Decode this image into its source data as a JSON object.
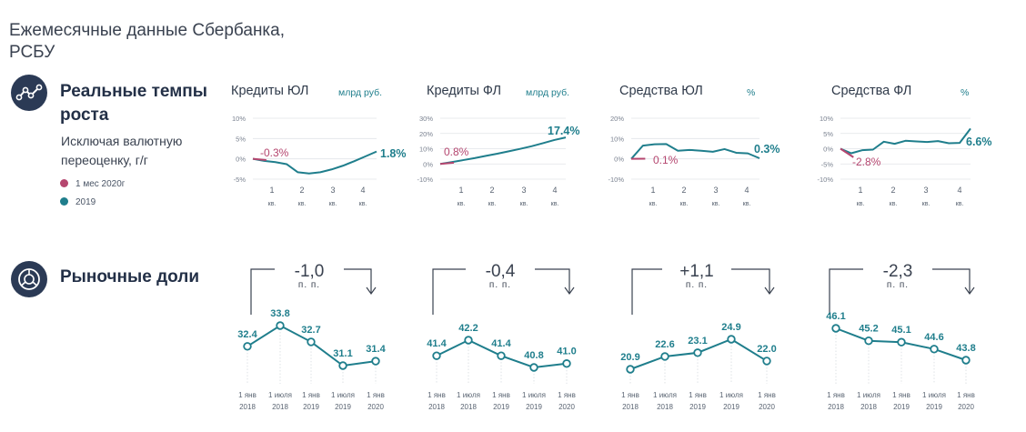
{
  "page": {
    "title_line1": "Ежемесячные данные Сбербанка,",
    "title_line2": "РСБУ"
  },
  "section1": {
    "title_line1": "Реальные темпы",
    "title_line2": "роста",
    "subtitle_line1": "Исключая валютную",
    "subtitle_line2": "переоценку, г/г",
    "icon": "line-chart-icon",
    "legend": [
      {
        "label": "1 мес 2020г",
        "color": "#b5466f"
      },
      {
        "label": "2019",
        "color": "#1f7e8c"
      }
    ]
  },
  "section2": {
    "title": "Рыночные доли",
    "icon": "pie-chart-icon"
  },
  "colors": {
    "teal": "#1f7e8c",
    "crimson": "#b5466f",
    "navy": "#2b3a55",
    "dark": "#3a4250"
  },
  "chart_data": [
    {
      "type": "line",
      "name": "Кредиты ЮЛ",
      "unit": "млрд руб.",
      "yticks": [
        "10%",
        "5%",
        "0%",
        "-5%"
      ],
      "ylim": [
        -5,
        10
      ],
      "quarters": [
        "1",
        "2",
        "3",
        "4"
      ],
      "quarter_suffix": "кв.",
      "series_2019": [
        0,
        -0.5,
        -0.8,
        -1.3,
        -3.3,
        -3.6,
        -3.3,
        -2.6,
        -1.7,
        -0.6,
        0.6,
        1.8
      ],
      "series_2020": [
        0,
        -0.3
      ],
      "label_2020": "-0.3%",
      "label_2019": "1.8%"
    },
    {
      "type": "line",
      "name": "Кредиты ФЛ",
      "unit": "млрд руб.",
      "yticks": [
        "30%",
        "20%",
        "10%",
        "0%",
        "-10%"
      ],
      "ylim": [
        -10,
        30
      ],
      "quarters": [
        "1",
        "2",
        "3",
        "4"
      ],
      "quarter_suffix": "кв.",
      "series_2019": [
        0,
        1.2,
        2.5,
        3.8,
        5.3,
        6.7,
        8.3,
        9.9,
        11.6,
        13.6,
        15.7,
        17.4
      ],
      "series_2020": [
        0,
        0.8
      ],
      "label_2020": "0.8%",
      "label_2019": "17.4%"
    },
    {
      "type": "line",
      "name": "Средства ЮЛ",
      "unit": "%",
      "yticks": [
        "20%",
        "10%",
        "0%",
        "-10%"
      ],
      "ylim": [
        -10,
        20
      ],
      "quarters": [
        "1",
        "2",
        "3",
        "4"
      ],
      "quarter_suffix": "кв.",
      "series_2019": [
        0,
        6.5,
        7.2,
        7.3,
        4.0,
        4.4,
        4.0,
        3.5,
        4.8,
        3.0,
        2.7,
        0.3
      ],
      "series_2020": [
        0,
        0.1
      ],
      "label_2020": "0.1%",
      "label_2019": "0.3%"
    },
    {
      "type": "line",
      "name": "Средства ФЛ",
      "unit": "%",
      "yticks": [
        "10%",
        "5%",
        "0%",
        "-5%",
        "-10%"
      ],
      "ylim": [
        -10,
        10
      ],
      "quarters": [
        "1",
        "2",
        "3",
        "4"
      ],
      "quarter_suffix": "кв.",
      "series_2019": [
        0,
        -1.5,
        -0.5,
        -0.3,
        2.3,
        1.6,
        2.6,
        2.4,
        2.2,
        2.5,
        1.8,
        1.9,
        6.6
      ],
      "series_2020": [
        0,
        -2.8
      ],
      "label_2020": "-2.8%",
      "label_2019": "6.6%"
    },
    {
      "type": "line",
      "name": "Кредиты ЮЛ — рыночная доля",
      "change": "-1,0",
      "change_unit": "п. п.",
      "x": [
        "1 янв 2018",
        "1 июля 2018",
        "1 янв 2019",
        "1 июля 2019",
        "1 янв 2020"
      ],
      "x_line1": [
        "1 янв",
        "1 июля",
        "1 янв",
        "1 июля",
        "1 янв"
      ],
      "x_line2": [
        "2018",
        "2018",
        "2019",
        "2019",
        "2020"
      ],
      "values": [
        32.4,
        33.8,
        32.7,
        31.1,
        31.4
      ],
      "labels": [
        "32.4",
        "33.8",
        "32.7",
        "31.1",
        "31.4"
      ]
    },
    {
      "type": "line",
      "name": "Кредиты ФЛ — рыночная доля",
      "change": "-0,4",
      "change_unit": "п. п.",
      "x": [
        "1 янв 2018",
        "1 июля 2018",
        "1 янв 2019",
        "1 июля 2019",
        "1 янв 2020"
      ],
      "x_line1": [
        "1 янв",
        "1 июля",
        "1 янв",
        "1 июля",
        "1 янв"
      ],
      "x_line2": [
        "2018",
        "2018",
        "2019",
        "2019",
        "2020"
      ],
      "values": [
        41.4,
        42.2,
        41.4,
        40.8,
        41.0
      ],
      "labels": [
        "41.4",
        "42.2",
        "41.4",
        "40.8",
        "41.0"
      ]
    },
    {
      "type": "line",
      "name": "Средства ЮЛ — рыночная доля",
      "change": "+1,1",
      "change_unit": "п. п.",
      "x": [
        "1 янв 2018",
        "1 июля 2018",
        "1 янв 2019",
        "1 июля 2019",
        "1 янв 2020"
      ],
      "x_line1": [
        "1 янв",
        "1 июля",
        "1 янв",
        "1 июля",
        "1 янв"
      ],
      "x_line2": [
        "2018",
        "2018",
        "2019",
        "2019",
        "2020"
      ],
      "values": [
        20.9,
        22.6,
        23.1,
        24.9,
        22.0
      ],
      "labels": [
        "20.9",
        "22.6",
        "23.1",
        "24.9",
        "22.0"
      ]
    },
    {
      "type": "line",
      "name": "Средства ФЛ — рыночная доля",
      "change": "-2,3",
      "change_unit": "п. п.",
      "x": [
        "1 янв 2018",
        "1 июля 2018",
        "1 янв 2019",
        "1 июля 2019",
        "1 янв 2020"
      ],
      "x_line1": [
        "1 янв",
        "1 июля",
        "1 янв",
        "1 июля",
        "1 янв"
      ],
      "x_line2": [
        "2018",
        "2018",
        "2019",
        "2019",
        "2020"
      ],
      "values": [
        46.1,
        45.2,
        45.1,
        44.6,
        43.8
      ],
      "labels": [
        "46.1",
        "45.2",
        "45.1",
        "44.6",
        "43.8"
      ]
    }
  ]
}
